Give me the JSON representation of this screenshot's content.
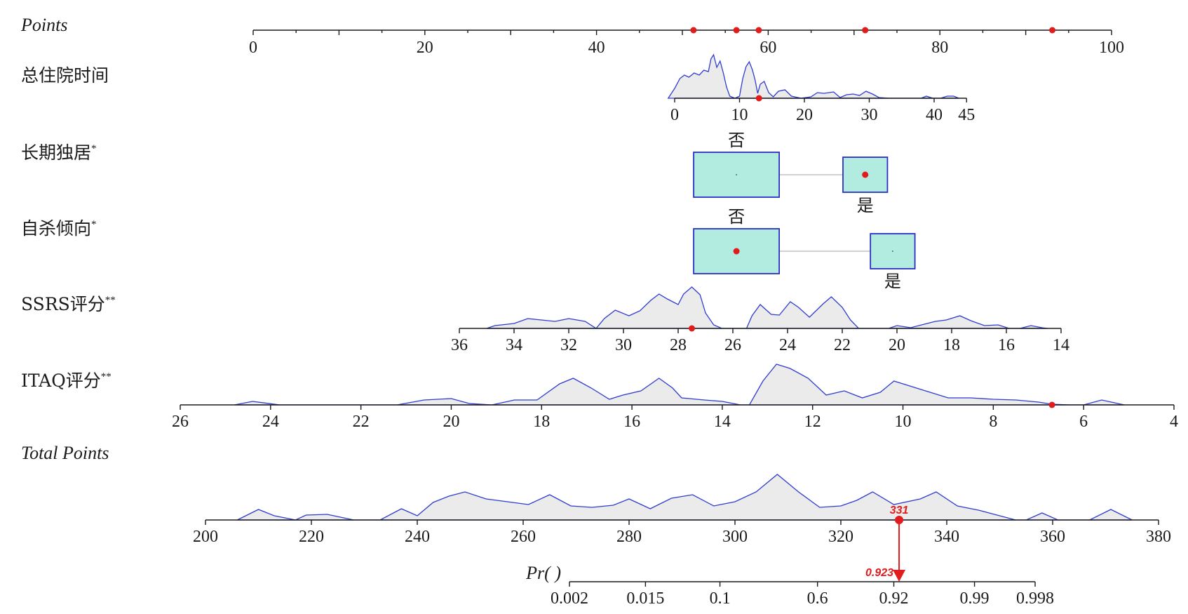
{
  "chart_data": {
    "type": "nomogram",
    "points_axis": {
      "label": "Points",
      "ticks": [
        0,
        20,
        40,
        60,
        80,
        100
      ],
      "selected_points": [
        51.3,
        56.3,
        58.9,
        71.3,
        93.1
      ]
    },
    "variables": [
      {
        "id": "los",
        "label": "总住院时间",
        "type": "continuous",
        "ticks": [
          0,
          10,
          20,
          30,
          40,
          45
        ],
        "selected_value": 13,
        "density": [
          [
            -1,
            0
          ],
          [
            0,
            14
          ],
          [
            0.8,
            28
          ],
          [
            1.5,
            33
          ],
          [
            2.2,
            30
          ],
          [
            3,
            36
          ],
          [
            3.8,
            33
          ],
          [
            4.5,
            40
          ],
          [
            5.2,
            38
          ],
          [
            5.6,
            56
          ],
          [
            6,
            62
          ],
          [
            6.5,
            44
          ],
          [
            7,
            53
          ],
          [
            7.5,
            36
          ],
          [
            8,
            16
          ],
          [
            8.5,
            3
          ],
          [
            9.3,
            0
          ],
          [
            10,
            3
          ],
          [
            10.5,
            28
          ],
          [
            11,
            45
          ],
          [
            11.5,
            52
          ],
          [
            12,
            40
          ],
          [
            12.4,
            26
          ],
          [
            12.8,
            7
          ],
          [
            13.2,
            20
          ],
          [
            13.8,
            24
          ],
          [
            14.5,
            8
          ],
          [
            15.2,
            2
          ],
          [
            16,
            10
          ],
          [
            17,
            12
          ],
          [
            18,
            3
          ],
          [
            19.5,
            0
          ],
          [
            21,
            2
          ],
          [
            22,
            8
          ],
          [
            23,
            7
          ],
          [
            24.5,
            9
          ],
          [
            25.5,
            1
          ],
          [
            26.5,
            5
          ],
          [
            27.5,
            6
          ],
          [
            28.5,
            4
          ],
          [
            29.5,
            10
          ],
          [
            30.5,
            6
          ],
          [
            31.5,
            1
          ],
          [
            33,
            0
          ],
          [
            38,
            0
          ],
          [
            38.8,
            3
          ],
          [
            39.8,
            0
          ],
          [
            41,
            0
          ],
          [
            42,
            3
          ],
          [
            43,
            3
          ],
          [
            43.8,
            0
          ]
        ]
      },
      {
        "id": "living_alone",
        "label": "长期独居",
        "star": "*",
        "type": "categorical",
        "levels": [
          {
            "label": "否",
            "points": 56.3,
            "weight": 1.5
          },
          {
            "label": "是",
            "points": 71.3,
            "weight": 1.0
          }
        ],
        "selected_level": "是"
      },
      {
        "id": "suicidal",
        "label": "自杀倾向",
        "star": "*",
        "type": "categorical",
        "levels": [
          {
            "label": "否",
            "points": 56.3,
            "weight": 1.5
          },
          {
            "label": "是",
            "points": 74.5,
            "weight": 1.0
          }
        ],
        "selected_level": "否"
      },
      {
        "id": "ssrs",
        "label": "SSRS评分",
        "star": "**",
        "type": "continuous",
        "ticks": [
          36,
          34,
          32,
          30,
          28,
          26,
          24,
          22,
          20,
          18,
          16,
          14
        ],
        "selected_value": 27.5,
        "density": [
          [
            35,
            0
          ],
          [
            34.7,
            4
          ],
          [
            34,
            7
          ],
          [
            33.5,
            14
          ],
          [
            33,
            12
          ],
          [
            32.5,
            10
          ],
          [
            32,
            14
          ],
          [
            31.4,
            10
          ],
          [
            31,
            0
          ],
          [
            30.7,
            14
          ],
          [
            30.3,
            26
          ],
          [
            29.8,
            18
          ],
          [
            29.4,
            25
          ],
          [
            29,
            40
          ],
          [
            28.7,
            49
          ],
          [
            28.4,
            42
          ],
          [
            28,
            34
          ],
          [
            27.8,
            49
          ],
          [
            27.5,
            59
          ],
          [
            27.2,
            48
          ],
          [
            27,
            22
          ],
          [
            26.7,
            5
          ],
          [
            26.4,
            0
          ],
          [
            25.5,
            0
          ],
          [
            25.3,
            18
          ],
          [
            25,
            34
          ],
          [
            24.6,
            20
          ],
          [
            24.3,
            19
          ],
          [
            23.9,
            38
          ],
          [
            23.6,
            30
          ],
          [
            23.2,
            16
          ],
          [
            22.7,
            35
          ],
          [
            22.4,
            45
          ],
          [
            22,
            30
          ],
          [
            21.7,
            12
          ],
          [
            21.4,
            0
          ],
          [
            20.3,
            0
          ],
          [
            20,
            4
          ],
          [
            19.5,
            1
          ],
          [
            19,
            6
          ],
          [
            18.6,
            10
          ],
          [
            18.2,
            12
          ],
          [
            17.7,
            18
          ],
          [
            17.3,
            11
          ],
          [
            16.8,
            4
          ],
          [
            16.3,
            5
          ],
          [
            15.9,
            0
          ],
          [
            15.5,
            0
          ],
          [
            15.1,
            4
          ],
          [
            14.7,
            1
          ],
          [
            14.5,
            0
          ]
        ]
      },
      {
        "id": "itaq",
        "label": "ITAQ评分",
        "star": "**",
        "type": "continuous",
        "ticks": [
          26,
          24,
          22,
          20,
          18,
          16,
          14,
          12,
          10,
          8,
          6,
          4
        ],
        "selected_value": 6.7,
        "density": [
          [
            24.8,
            0
          ],
          [
            24.4,
            5
          ],
          [
            23.8,
            0
          ],
          [
            21.2,
            0
          ],
          [
            20.6,
            7
          ],
          [
            20,
            9
          ],
          [
            19.6,
            2
          ],
          [
            19.1,
            0
          ],
          [
            18.6,
            7
          ],
          [
            18.1,
            7
          ],
          [
            17.6,
            30
          ],
          [
            17.3,
            38
          ],
          [
            16.9,
            24
          ],
          [
            16.5,
            8
          ],
          [
            16.2,
            14
          ],
          [
            15.8,
            20
          ],
          [
            15.4,
            38
          ],
          [
            15.1,
            24
          ],
          [
            14.9,
            10
          ],
          [
            14.4,
            7
          ],
          [
            14,
            5
          ],
          [
            13.6,
            0
          ],
          [
            13.4,
            0
          ],
          [
            13.1,
            34
          ],
          [
            12.8,
            58
          ],
          [
            12.5,
            52
          ],
          [
            12.1,
            38
          ],
          [
            11.7,
            14
          ],
          [
            11.3,
            20
          ],
          [
            10.9,
            10
          ],
          [
            10.5,
            18
          ],
          [
            10.2,
            34
          ],
          [
            9.8,
            26
          ],
          [
            9.4,
            18
          ],
          [
            9,
            10
          ],
          [
            8.5,
            10
          ],
          [
            8,
            8
          ],
          [
            7.5,
            7
          ],
          [
            7,
            4
          ],
          [
            6.7,
            1
          ],
          [
            6.3,
            0
          ],
          [
            6,
            0
          ],
          [
            5.6,
            7
          ],
          [
            5.1,
            0
          ]
        ]
      }
    ],
    "total_points_axis": {
      "label": "Total Points",
      "ticks": [
        200,
        220,
        240,
        260,
        280,
        300,
        320,
        340,
        360,
        380
      ],
      "selected_value": 331,
      "selected_label": "331",
      "density": [
        [
          206,
          0
        ],
        [
          210,
          15
        ],
        [
          213,
          6
        ],
        [
          217,
          0
        ],
        [
          219,
          7
        ],
        [
          223,
          8
        ],
        [
          228,
          0
        ],
        [
          233,
          0
        ],
        [
          237,
          16
        ],
        [
          240,
          6
        ],
        [
          243,
          25
        ],
        [
          246,
          34
        ],
        [
          249,
          40
        ],
        [
          253,
          30
        ],
        [
          257,
          26
        ],
        [
          261,
          22
        ],
        [
          265,
          36
        ],
        [
          269,
          20
        ],
        [
          273,
          18
        ],
        [
          277,
          21
        ],
        [
          280,
          30
        ],
        [
          284,
          16
        ],
        [
          288,
          31
        ],
        [
          292,
          36
        ],
        [
          296,
          20
        ],
        [
          300,
          26
        ],
        [
          304,
          40
        ],
        [
          308,
          65
        ],
        [
          312,
          40
        ],
        [
          316,
          18
        ],
        [
          320,
          20
        ],
        [
          323,
          28
        ],
        [
          326,
          40
        ],
        [
          330,
          22
        ],
        [
          335,
          30
        ],
        [
          338,
          40
        ],
        [
          342,
          20
        ],
        [
          346,
          14
        ],
        [
          350,
          6
        ],
        [
          353,
          0
        ],
        [
          355,
          0
        ],
        [
          358,
          10
        ],
        [
          361,
          0
        ],
        [
          367,
          0
        ],
        [
          371,
          15
        ],
        [
          375,
          0
        ]
      ]
    },
    "probability_axis": {
      "label": "Pr( )",
      "ticks": [
        "0.002",
        "0.015",
        "0.1",
        "0.6",
        "0.92",
        "0.99",
        "0.998"
      ],
      "tick_values": [
        0.002,
        0.015,
        0.1,
        0.6,
        0.92,
        0.99,
        0.998
      ],
      "selected_value": 0.923,
      "selected_label": "0.923"
    }
  }
}
